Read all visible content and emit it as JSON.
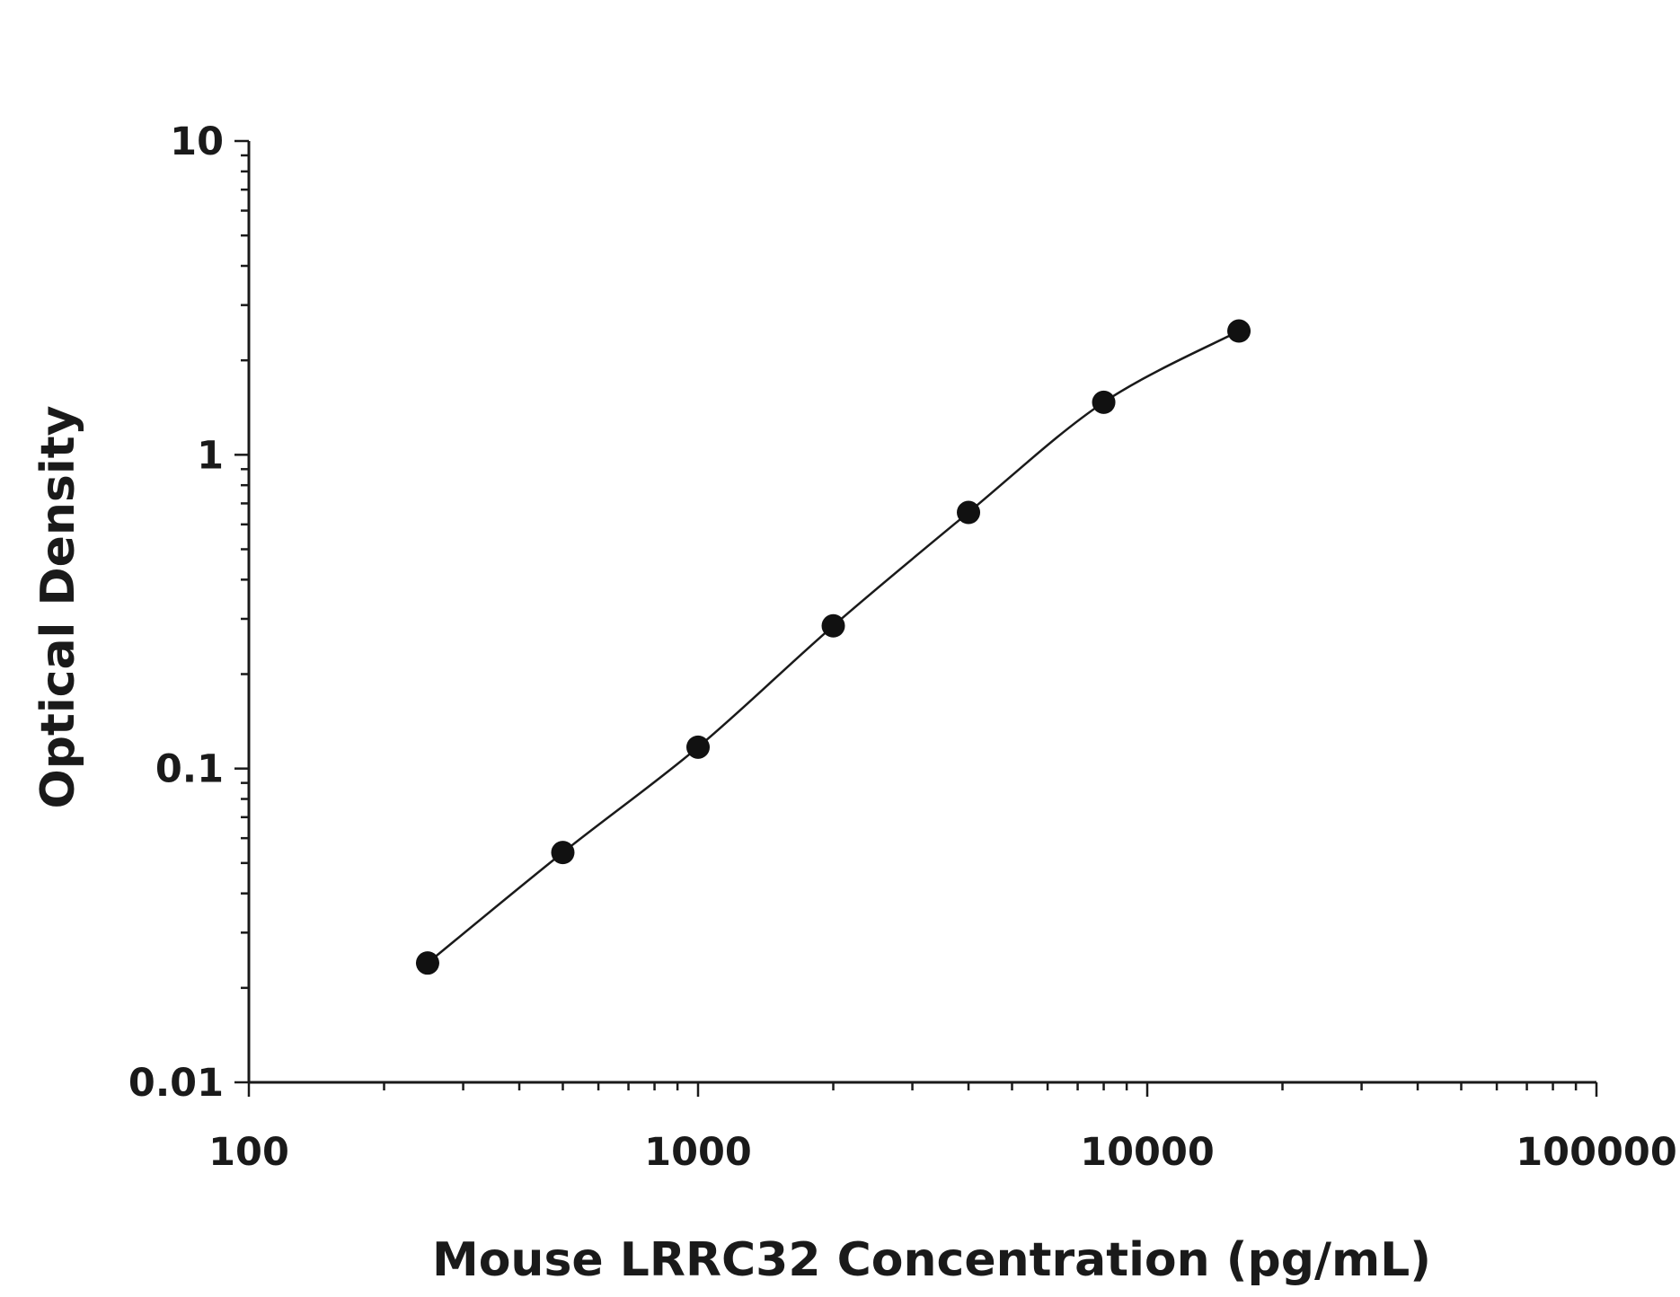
{
  "chart_data": {
    "type": "scatter",
    "title": "",
    "xlabel": "Mouse LRRC32 Concentration (pg/mL)",
    "ylabel": "Optical Density",
    "x_scale": "log",
    "y_scale": "log",
    "xlim": [
      100,
      100000
    ],
    "ylim": [
      0.01,
      10
    ],
    "x_ticks": [
      100,
      1000,
      10000,
      100000
    ],
    "x_tick_labels": [
      "100",
      "1000",
      "10000",
      "100000"
    ],
    "y_ticks": [
      0.01,
      0.1,
      1,
      10
    ],
    "y_tick_labels": [
      "0.01",
      "0.1",
      "1",
      "10"
    ],
    "grid": false,
    "legend": "none",
    "fit_curve": true,
    "colors": {
      "points": "#111111",
      "axes": "#1a1a1a"
    },
    "series": [
      {
        "x": [
          250,
          500,
          1000,
          2000,
          4000,
          8000,
          16000
        ],
        "y": [
          0.024,
          0.054,
          0.117,
          0.285,
          0.655,
          1.47,
          2.48
        ]
      }
    ]
  }
}
